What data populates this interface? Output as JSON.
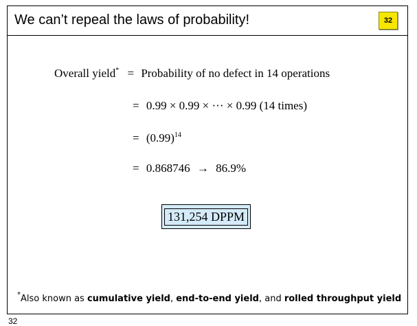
{
  "slide": {
    "title": "We can’t repeal the laws of probability!",
    "page_number": "32"
  },
  "equations": {
    "line1_lhs": "Overall yield",
    "line1_mark": "*",
    "line1_eq": "=",
    "line1_rhs": "Probability of no defect in 14 operations",
    "line2_eq": "=",
    "line2_rhs": "0.99 × 0.99 × ··· × 0.99 (14 times)",
    "line3_eq": "=",
    "line3_base": "(0.99)",
    "line3_exp": "14",
    "line4_eq": "=",
    "line4_value": "0.868746",
    "line4_arrow": "→",
    "line4_percent": "86.9%"
  },
  "result_box": {
    "text": "131,254 DPPM"
  },
  "footnote": {
    "mark": "*",
    "prefix": "Also known as ",
    "term1": "cumulative yield",
    "sep1": ", ",
    "term2": "end-to-end yield",
    "sep2": ", and ",
    "term3": "rolled throughput yield"
  },
  "cut_page_number": "32"
}
